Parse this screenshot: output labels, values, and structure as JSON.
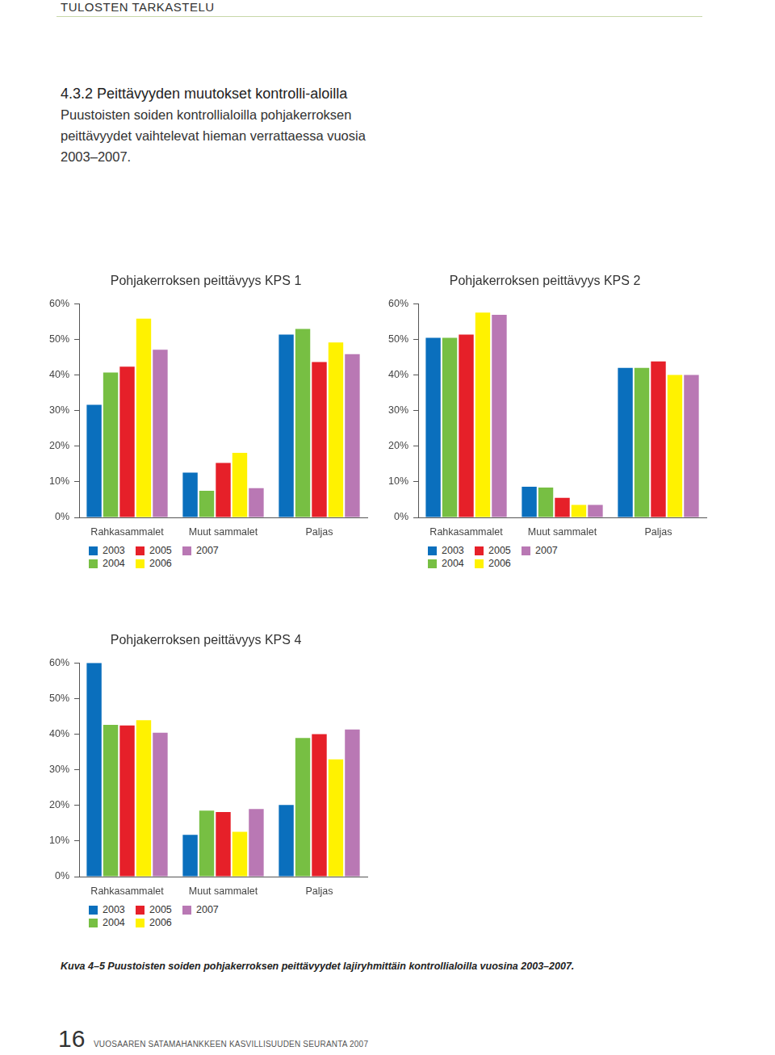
{
  "header": "TULOSTEN TARKASTELU",
  "section": {
    "heading": "4.3.2 Peittävyyden muutokset kontrolli-aloilla",
    "text": "Puustoisten soiden kontrollialoilla pohjakerroksen peittävyydet vaihtelevat hieman verrattaessa vuosia 2003–2007."
  },
  "chart_data": [
    {
      "type": "bar",
      "title": "Pohjakerroksen peittävyys KPS 1",
      "categories": [
        "Rahkasammalet",
        "Muut sammalet",
        "Paljas"
      ],
      "series": [
        {
          "name": "2003",
          "color": "#0a6fbd",
          "values": [
            31.6,
            12.6,
            51.3
          ]
        },
        {
          "name": "2004",
          "color": "#77bf43",
          "values": [
            40.7,
            7.5,
            52.9
          ]
        },
        {
          "name": "2005",
          "color": "#e62029",
          "values": [
            42.3,
            15.3,
            43.6
          ]
        },
        {
          "name": "2006",
          "color": "#fff200",
          "values": [
            55.8,
            18.1,
            49.1
          ]
        },
        {
          "name": "2007",
          "color": "#b978b4",
          "values": [
            47.1,
            8.2,
            45.8
          ]
        }
      ],
      "ylim": [
        0,
        60
      ],
      "yticks": [
        {
          "value": 0,
          "label": "0%"
        },
        {
          "value": 10,
          "label": "10%"
        },
        {
          "value": 20,
          "label": "20%"
        },
        {
          "value": 30,
          "label": "30%"
        },
        {
          "value": 40,
          "label": "40%"
        },
        {
          "value": 50,
          "label": "50%"
        },
        {
          "value": 60,
          "label": "60%"
        }
      ],
      "grid": false,
      "legend": "bottom"
    },
    {
      "type": "bar",
      "title": "Pohjakerroksen peittävyys KPS 2",
      "categories": [
        "Rahkasammalet",
        "Muut sammalet",
        "Paljas"
      ],
      "series": [
        {
          "name": "2003",
          "color": "#0a6fbd",
          "values": [
            50.4,
            8.6,
            42.0
          ]
        },
        {
          "name": "2004",
          "color": "#77bf43",
          "values": [
            50.4,
            8.4,
            42.0
          ]
        },
        {
          "name": "2005",
          "color": "#e62029",
          "values": [
            51.3,
            5.5,
            43.8
          ]
        },
        {
          "name": "2006",
          "color": "#fff200",
          "values": [
            57.5,
            3.5,
            40.0
          ]
        },
        {
          "name": "2007",
          "color": "#b978b4",
          "values": [
            56.9,
            3.5,
            40.0
          ]
        }
      ],
      "ylim": [
        0,
        60
      ],
      "yticks": [
        {
          "value": 0,
          "label": "0%"
        },
        {
          "value": 10,
          "label": "10%"
        },
        {
          "value": 20,
          "label": "20%"
        },
        {
          "value": 30,
          "label": "30%"
        },
        {
          "value": 40,
          "label": "40%"
        },
        {
          "value": 50,
          "label": "50%"
        },
        {
          "value": 60,
          "label": "60%"
        }
      ],
      "grid": false,
      "legend": "bottom"
    },
    {
      "type": "bar",
      "title": "Pohjakerroksen peittävyys KPS 4",
      "categories": [
        "Rahkasammalet",
        "Muut sammalet",
        "Paljas"
      ],
      "series": [
        {
          "name": "2003",
          "color": "#0a6fbd",
          "values": [
            60.0,
            11.7,
            20.1
          ]
        },
        {
          "name": "2004",
          "color": "#77bf43",
          "values": [
            42.6,
            18.5,
            38.9
          ]
        },
        {
          "name": "2005",
          "color": "#e62029",
          "values": [
            42.4,
            18.1,
            40.0
          ]
        },
        {
          "name": "2006",
          "color": "#fff200",
          "values": [
            43.9,
            12.6,
            32.9
          ]
        },
        {
          "name": "2007",
          "color": "#b978b4",
          "values": [
            40.4,
            19.0,
            41.3
          ]
        }
      ],
      "ylim": [
        0,
        60
      ],
      "yticks": [
        {
          "value": 0,
          "label": "0%"
        },
        {
          "value": 10,
          "label": "10%"
        },
        {
          "value": 20,
          "label": "20%"
        },
        {
          "value": 30,
          "label": "30%"
        },
        {
          "value": 40,
          "label": "40%"
        },
        {
          "value": 50,
          "label": "50%"
        },
        {
          "value": 60,
          "label": "60%"
        }
      ],
      "grid": false,
      "legend": "bottom"
    }
  ],
  "caption": "Kuva 4–5 Puustoisten soiden pohjakerroksen peittävyydet lajiryhmittäin kontrollialoilla vuosina 2003–2007.",
  "footer": {
    "page": "16",
    "text": "VUOSAAREN SATAMAHANKKEEN KASVILLISUUDEN SEURANTA 2007"
  }
}
